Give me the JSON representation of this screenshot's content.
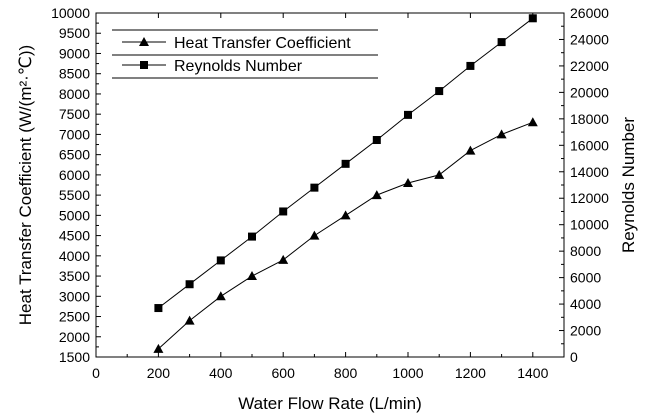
{
  "chart_data": {
    "type": "line",
    "title": "",
    "xlabel": "Water Flow Rate (L/min)",
    "ylabel_left": "Heat Transfer Coefficient (W/(m²·℃))",
    "ylabel_right": "Reynolds Number",
    "xlim": [
      0,
      1500
    ],
    "ylim_left": [
      1500,
      10000
    ],
    "ylim_right": [
      0,
      26000
    ],
    "x_ticks": [
      "0",
      "200",
      "400",
      "600",
      "800",
      "1000",
      "1200",
      "1400"
    ],
    "y_left_ticks": [
      "1500",
      "2000",
      "2500",
      "3000",
      "3500",
      "4000",
      "4500",
      "5000",
      "5500",
      "6000",
      "6500",
      "7000",
      "7500",
      "8000",
      "8500",
      "9000",
      "9500",
      "10000"
    ],
    "y_right_ticks": [
      "0",
      "2000",
      "4000",
      "6000",
      "8000",
      "10000",
      "12000",
      "14000",
      "16000",
      "18000",
      "20000",
      "22000",
      "24000",
      "26000"
    ],
    "grid": false,
    "legend_position": "top-left",
    "x": [
      200,
      300,
      400,
      500,
      600,
      700,
      800,
      900,
      1000,
      1100,
      1200,
      1300,
      1400
    ],
    "series": [
      {
        "name": "Heat Transfer Coefficient",
        "axis": "left",
        "marker": "triangle",
        "color": "#000000",
        "values": [
          1700,
          2400,
          3000,
          3500,
          3900,
          4500,
          5000,
          5500,
          5800,
          6000,
          6600,
          7000,
          7300
        ]
      },
      {
        "name": "Reynolds Number",
        "axis": "right",
        "marker": "square",
        "color": "#000000",
        "values": [
          3700,
          5500,
          7300,
          9100,
          11000,
          12800,
          14600,
          16400,
          18300,
          20100,
          22000,
          23800,
          25600
        ]
      }
    ]
  }
}
